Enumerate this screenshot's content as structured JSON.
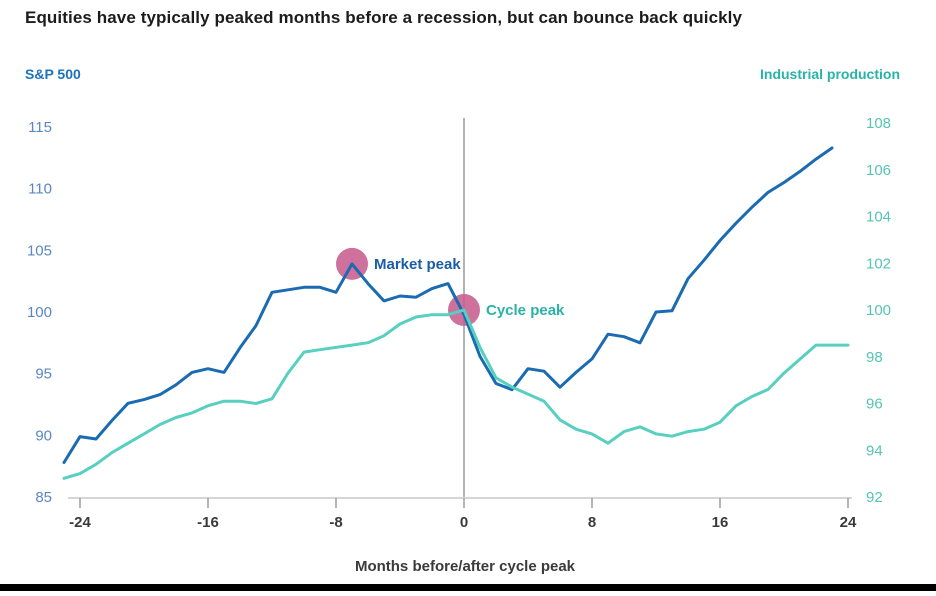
{
  "title": "Equities have typically peaked months before a recession, but can bounce back quickly",
  "legend": {
    "left_label": "S&P 500",
    "right_label": "Industrial production"
  },
  "x_axis_label": "Months before/after cycle peak",
  "colors": {
    "sp500_line": "#1a6bb2",
    "industrial_production_line": "#58cfc0",
    "left_axis_text": "#5b87c3",
    "right_axis_text": "#55c4b6",
    "marker_dot": "#c75f90",
    "zero_line": "#9a9a9a",
    "axis_line": "#c9c9c9"
  },
  "chart_data": {
    "type": "line",
    "title": "Equities have typically peaked months before a recession, but can bounce back quickly",
    "xlabel": "Months before/after cycle peak",
    "grid": false,
    "legend_position": "top-corners",
    "x_ticks": [
      -24,
      -16,
      -8,
      0,
      8,
      16,
      24
    ],
    "x_range": [
      -25,
      24
    ],
    "zero_line_x": 0,
    "left_axis": {
      "label": "S&P 500",
      "ticks": [
        85,
        90,
        95,
        100,
        105,
        110,
        115
      ],
      "range": [
        85,
        115
      ]
    },
    "right_axis": {
      "label": "Industrial production",
      "ticks": [
        92,
        94,
        96,
        98,
        100,
        102,
        104,
        106,
        108
      ],
      "range": [
        92,
        108
      ]
    },
    "series": [
      {
        "name": "S&P 500",
        "axis": "left",
        "color": "#1a6bb2",
        "x": [
          -25,
          -24,
          -23,
          -22,
          -21,
          -20,
          -19,
          -18,
          -17,
          -16,
          -15,
          -14,
          -13,
          -12,
          -11,
          -10,
          -9,
          -8,
          -7,
          -6,
          -5,
          -4,
          -3,
          -2,
          -1,
          0,
          1,
          2,
          3,
          4,
          5,
          6,
          7,
          8,
          9,
          10,
          11,
          12,
          13,
          14,
          15,
          16,
          17,
          18,
          19,
          20,
          21,
          22,
          23
        ],
        "values": [
          87.8,
          89.9,
          89.7,
          91.2,
          92.6,
          92.9,
          93.3,
          94.1,
          95.1,
          95.4,
          95.1,
          97.1,
          98.9,
          101.6,
          101.8,
          102.0,
          102.0,
          101.6,
          103.9,
          102.3,
          100.9,
          101.3,
          101.2,
          101.9,
          102.3,
          99.8,
          96.4,
          94.2,
          93.7,
          95.4,
          95.2,
          93.9,
          95.1,
          96.2,
          98.2,
          98.0,
          97.5,
          100.0,
          100.1,
          102.7,
          104.2,
          105.8,
          107.2,
          108.5,
          109.7,
          110.5,
          111.4,
          112.4,
          113.3
        ]
      },
      {
        "name": "Industrial production",
        "axis": "right",
        "color": "#58cfc0",
        "x": [
          -25,
          -24,
          -23,
          -22,
          -21,
          -20,
          -19,
          -18,
          -17,
          -16,
          -15,
          -14,
          -13,
          -12,
          -11,
          -10,
          -9,
          -8,
          -7,
          -6,
          -5,
          -4,
          -3,
          -2,
          -1,
          0,
          1,
          2,
          3,
          4,
          5,
          6,
          7,
          8,
          9,
          10,
          11,
          12,
          13,
          14,
          15,
          16,
          17,
          18,
          19,
          20,
          21,
          22,
          23,
          24
        ],
        "values": [
          92.8,
          93.0,
          93.4,
          93.9,
          94.3,
          94.7,
          95.1,
          95.4,
          95.6,
          95.9,
          96.1,
          96.1,
          96.0,
          96.2,
          97.3,
          98.2,
          98.3,
          98.4,
          98.5,
          98.6,
          98.9,
          99.4,
          99.7,
          99.8,
          99.8,
          100.0,
          98.4,
          97.1,
          96.7,
          96.4,
          96.1,
          95.3,
          94.9,
          94.7,
          94.3,
          94.8,
          95.0,
          94.7,
          94.6,
          94.8,
          94.9,
          95.2,
          95.9,
          96.3,
          96.6,
          97.3,
          97.9,
          98.5,
          98.5,
          98.5
        ]
      }
    ],
    "annotations": [
      {
        "label": "Market peak",
        "axis": "left",
        "x": -7,
        "y": 103.9,
        "dot_color": "#c75f90",
        "text_color": "#1a5da5"
      },
      {
        "label": "Cycle peak",
        "axis": "right",
        "x": 0,
        "y": 100.0,
        "dot_color": "#c75f90",
        "text_color": "#29b3a8"
      }
    ]
  }
}
